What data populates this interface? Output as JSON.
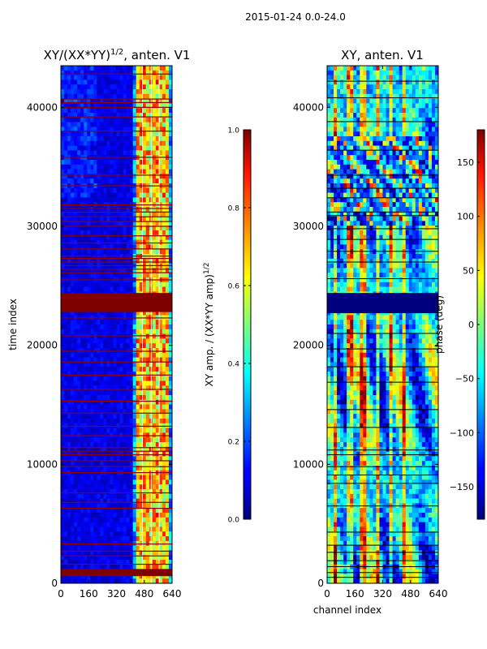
{
  "suptitle": "2015-01-24 0.0-24.0",
  "chart_data": [
    {
      "type": "heatmap",
      "title": "XY/(XX*YY)^1/2, anten. V1",
      "title_main": "XY/(XX*YY)",
      "title_exp": "1/2",
      "title_rest": ", anten. V1",
      "xlabel": "",
      "ylabel": "time index",
      "xlim": [
        0,
        640
      ],
      "ylim": [
        0,
        43500
      ],
      "xticks": [
        0,
        160,
        320,
        480,
        640
      ],
      "yticks": [
        0,
        10000,
        20000,
        30000,
        40000
      ],
      "colormap": "jet",
      "colorbar": {
        "label": "XY amp. / (XX*YY amp)^1/2",
        "label_main": "XY amp. / (XX*YY amp)",
        "label_exp": "1/2",
        "range": [
          0.0,
          1.0
        ],
        "ticks": [
          "0.0",
          "0.2",
          "0.4",
          "0.6",
          "0.8",
          "1.0"
        ]
      },
      "background_value": 0.08,
      "saturated_row_bands": [
        [
          600,
          1200
        ],
        [
          22800,
          24400
        ]
      ],
      "flagged_rows": [
        1600,
        2300,
        2700,
        3300,
        6300,
        6800,
        7600,
        9300,
        9800,
        10300,
        10800,
        11100,
        11400,
        12400,
        13200,
        14300,
        15300,
        16300,
        17500,
        18600,
        19500,
        20800,
        22300,
        25500,
        26100,
        26400,
        26700,
        27000,
        27300,
        27500,
        28100,
        28600,
        29200,
        30000,
        30400,
        30800,
        31200,
        31500,
        31800,
        33400,
        34300,
        35800,
        38000,
        39200,
        40000,
        40400,
        40700,
        42800
      ],
      "bright_channels": [
        [
          440,
          460
        ],
        [
          480,
          505
        ],
        [
          520,
          545
        ],
        [
          560,
          590
        ],
        [
          600,
          620
        ]
      ]
    },
    {
      "type": "heatmap",
      "title": "XY, anten. V1",
      "xlabel": "channel index",
      "ylabel": "",
      "xlim": [
        0,
        640
      ],
      "ylim": [
        0,
        43500
      ],
      "xticks": [
        0,
        160,
        320,
        480,
        640
      ],
      "yticks": [
        0,
        10000,
        20000,
        30000,
        40000
      ],
      "colormap": "jet",
      "colorbar": {
        "label": "phase (deg)",
        "range": [
          -180,
          180
        ],
        "ticks": [
          "-150",
          "-100",
          "-50",
          "0",
          "50",
          "100",
          "150"
        ]
      },
      "flagged_band": [
        22700,
        24400
      ],
      "stripe_channels": [
        50,
        130,
        210,
        290,
        370,
        440
      ],
      "black_rows": [
        500,
        900,
        1400,
        1900,
        2600,
        3200,
        4300,
        6500,
        8400,
        9100,
        9800,
        10800,
        11200,
        13100,
        14600,
        16900,
        18200,
        19700,
        21000,
        25600,
        27000,
        27900,
        28900,
        29800,
        30900,
        31200,
        32400,
        33200,
        34300,
        36400,
        38800,
        40800,
        42200
      ]
    }
  ]
}
